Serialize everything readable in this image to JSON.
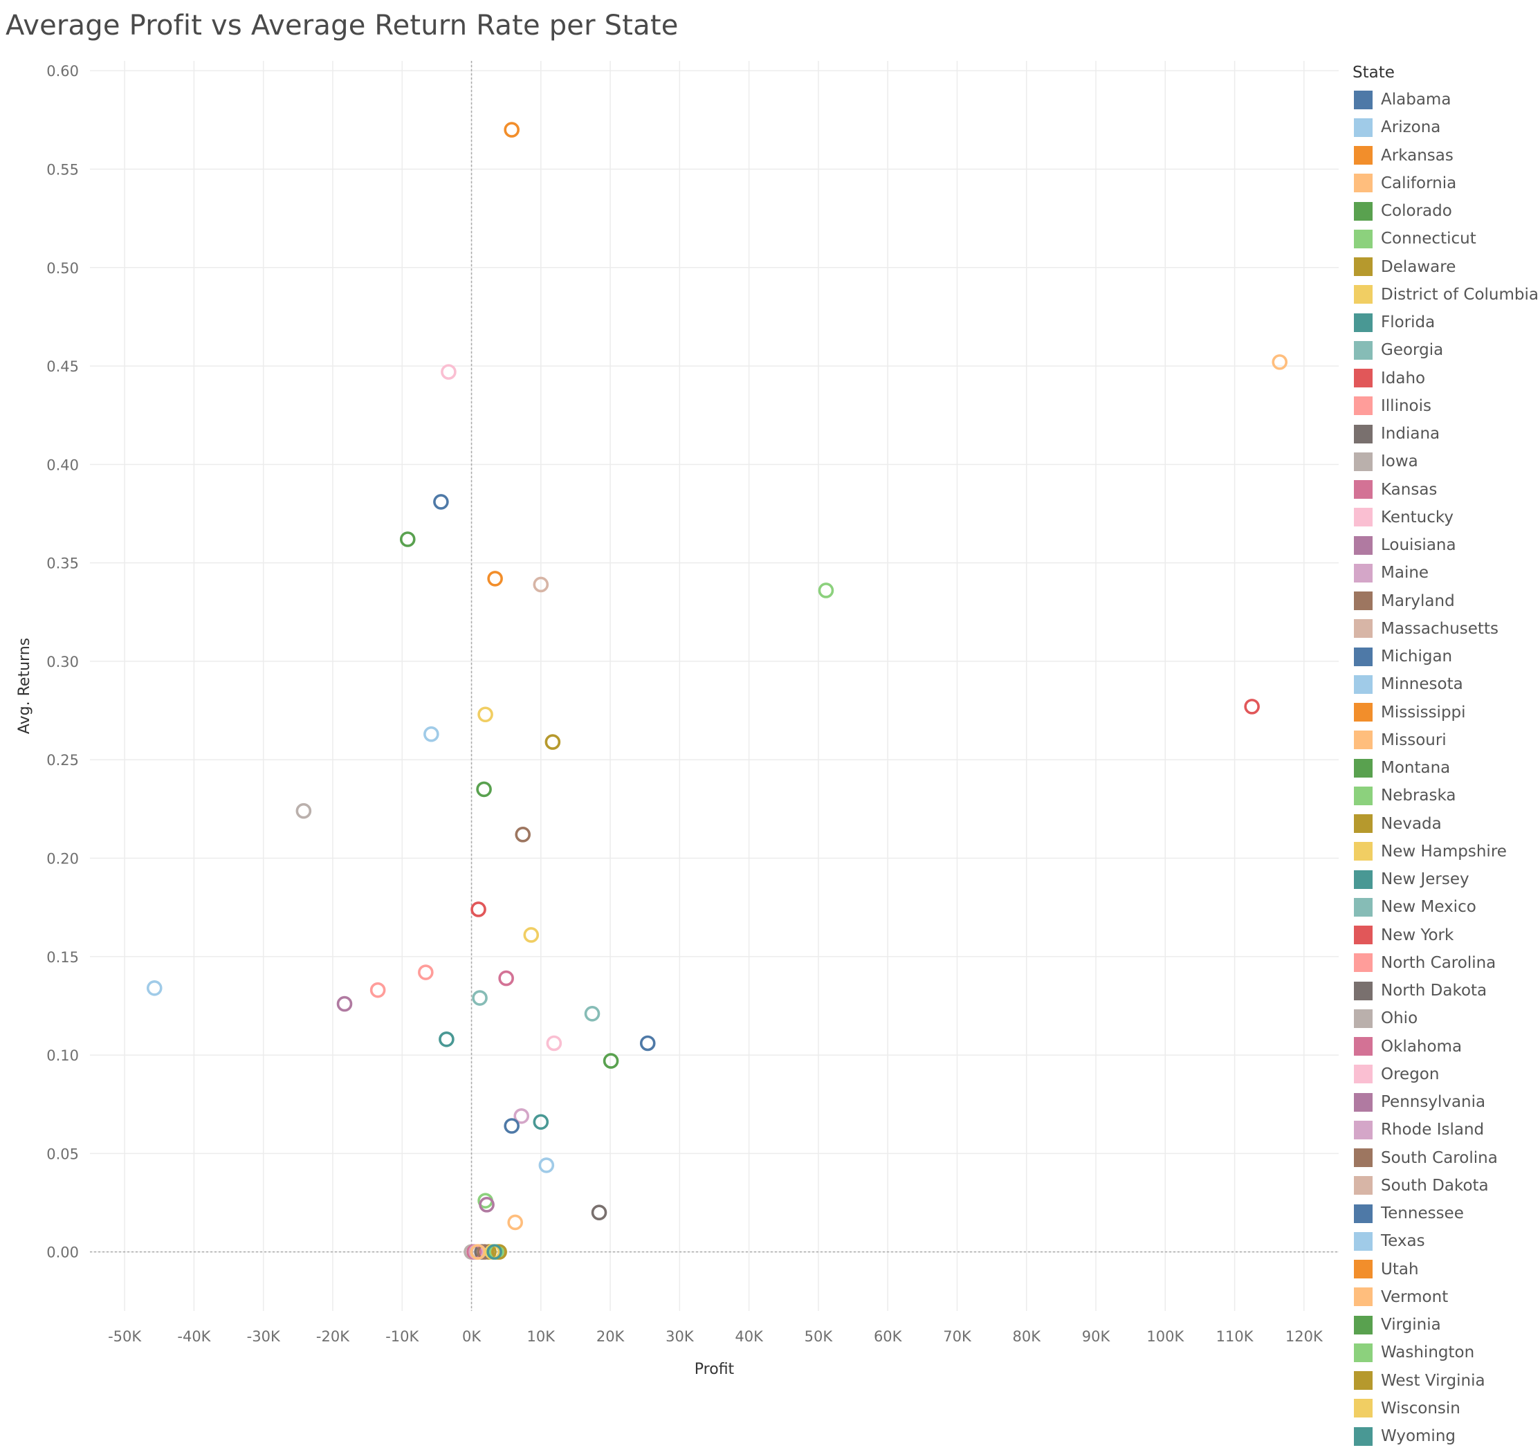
{
  "chart_data": {
    "type": "scatter",
    "title": "Average Profit vs Average Return Rate per State",
    "xlabel": "Profit",
    "ylabel": "Avg. Returns",
    "xlim": [
      -55000,
      125000
    ],
    "ylim": [
      -0.03,
      0.605
    ],
    "x_ticks": [
      -50000,
      -40000,
      -30000,
      -20000,
      -10000,
      0,
      10000,
      20000,
      30000,
      40000,
      50000,
      60000,
      70000,
      80000,
      90000,
      100000,
      110000,
      120000
    ],
    "x_tick_labels": [
      "-50K",
      "-40K",
      "-30K",
      "-20K",
      "-10K",
      "0K",
      "10K",
      "20K",
      "30K",
      "40K",
      "50K",
      "60K",
      "70K",
      "80K",
      "90K",
      "100K",
      "110K",
      "120K"
    ],
    "y_ticks": [
      0,
      0.05,
      0.1,
      0.15,
      0.2,
      0.25,
      0.3,
      0.35,
      0.4,
      0.45,
      0.5,
      0.55,
      0.6
    ],
    "y_tick_labels": [
      "0.00",
      "0.05",
      "0.10",
      "0.15",
      "0.20",
      "0.25",
      "0.30",
      "0.35",
      "0.40",
      "0.45",
      "0.50",
      "0.55",
      "0.60"
    ],
    "grid": true,
    "reference_lines": {
      "x": 0,
      "y": 0
    },
    "legend_title": "State",
    "legend_position": "right",
    "marker": "hollow-circle",
    "points": [
      {
        "state": "Alabama",
        "color": "#4e79a7",
        "x": -4400,
        "y": 0.381
      },
      {
        "state": "Arizona",
        "color": "#a0cbe8",
        "x": -5800,
        "y": 0.263
      },
      {
        "state": "Arkansas",
        "color": "#f28e2b",
        "x": 5800,
        "y": 0.57
      },
      {
        "state": "California",
        "color": "#ffbe7d",
        "x": 116500,
        "y": 0.452
      },
      {
        "state": "Colorado",
        "color": "#59a14f",
        "x": -9200,
        "y": 0.362
      },
      {
        "state": "Connecticut",
        "color": "#8cd17d",
        "x": 2000,
        "y": 0.026
      },
      {
        "state": "Delaware",
        "color": "#b6992d",
        "x": 11700,
        "y": 0.259
      },
      {
        "state": "District of Columbia",
        "color": "#f1ce63",
        "x": 2000,
        "y": 0.273
      },
      {
        "state": "Florida",
        "color": "#499894",
        "x": -3600,
        "y": 0.108
      },
      {
        "state": "Georgia",
        "color": "#86bcb6",
        "x": 17400,
        "y": 0.121
      },
      {
        "state": "Idaho",
        "color": "#e15759",
        "x": 1000,
        "y": 0.174
      },
      {
        "state": "Illinois",
        "color": "#ff9d9a",
        "x": -13500,
        "y": 0.133
      },
      {
        "state": "Indiana",
        "color": "#79706e",
        "x": 18400,
        "y": 0.02
      },
      {
        "state": "Iowa",
        "color": "#bab0ac",
        "x": 0,
        "y": 0.0
      },
      {
        "state": "Kansas",
        "color": "#d37295",
        "x": 5000,
        "y": 0.139
      },
      {
        "state": "Kentucky",
        "color": "#fabfd2",
        "x": -3300,
        "y": 0.447
      },
      {
        "state": "Louisiana",
        "color": "#b07aa1",
        "x": 2200,
        "y": 0.024
      },
      {
        "state": "Maine",
        "color": "#d4a6c8",
        "x": 7200,
        "y": 0.069
      },
      {
        "state": "Maryland",
        "color": "#9d7660",
        "x": 7400,
        "y": 0.212
      },
      {
        "state": "Massachusetts",
        "color": "#d7b5a6",
        "x": 10000,
        "y": 0.339
      },
      {
        "state": "Michigan",
        "color": "#4e79a7",
        "x": 25400,
        "y": 0.106
      },
      {
        "state": "Minnesota",
        "color": "#a0cbe8",
        "x": 10800,
        "y": 0.044
      },
      {
        "state": "Mississippi",
        "color": "#f28e2b",
        "x": 3400,
        "y": 0.342
      },
      {
        "state": "Missouri",
        "color": "#ffbe7d",
        "x": 6300,
        "y": 0.015
      },
      {
        "state": "Montana",
        "color": "#59a14f",
        "x": 1800,
        "y": 0.235
      },
      {
        "state": "Nebraska",
        "color": "#8cd17d",
        "x": 51100,
        "y": 0.336
      },
      {
        "state": "Nevada",
        "color": "#b6992d",
        "x": 2500,
        "y": 0.0
      },
      {
        "state": "New Hampshire",
        "color": "#f1ce63",
        "x": 8600,
        "y": 0.161
      },
      {
        "state": "New Jersey",
        "color": "#499894",
        "x": 10000,
        "y": 0.066
      },
      {
        "state": "New Mexico",
        "color": "#86bcb6",
        "x": 1200,
        "y": 0.129
      },
      {
        "state": "New York",
        "color": "#e15759",
        "x": 112500,
        "y": 0.277
      },
      {
        "state": "North Carolina",
        "color": "#ff9d9a",
        "x": -6600,
        "y": 0.142
      },
      {
        "state": "North Dakota",
        "color": "#79706e",
        "x": 1500,
        "y": 0.0
      },
      {
        "state": "Ohio",
        "color": "#bab0ac",
        "x": -24200,
        "y": 0.224
      },
      {
        "state": "Oklahoma",
        "color": "#d37295",
        "x": 400,
        "y": 0.0
      },
      {
        "state": "Oregon",
        "color": "#fabfd2",
        "x": 11900,
        "y": 0.106
      },
      {
        "state": "Pennsylvania",
        "color": "#b07aa1",
        "x": -18300,
        "y": 0.126
      },
      {
        "state": "Rhode Island",
        "color": "#d4a6c8",
        "x": 700,
        "y": 0.0
      },
      {
        "state": "South Carolina",
        "color": "#9d7660",
        "x": 1900,
        "y": 0.0
      },
      {
        "state": "South Dakota",
        "color": "#d7b5a6",
        "x": 1000,
        "y": 0.0
      },
      {
        "state": "Tennessee",
        "color": "#4e79a7",
        "x": 5800,
        "y": 0.064
      },
      {
        "state": "Texas",
        "color": "#a0cbe8",
        "x": -45700,
        "y": 0.134
      },
      {
        "state": "Utah",
        "color": "#f28e2b",
        "x": 3800,
        "y": 0.0
      },
      {
        "state": "Vermont",
        "color": "#ffbe7d",
        "x": 900,
        "y": 0.0
      },
      {
        "state": "Virginia",
        "color": "#59a14f",
        "x": 20100,
        "y": 0.097
      },
      {
        "state": "Washington",
        "color": "#8cd17d",
        "x": 3600,
        "y": 0.0
      },
      {
        "state": "West Virginia",
        "color": "#b6992d",
        "x": 4000,
        "y": 0.0
      },
      {
        "state": "Wisconsin",
        "color": "#f1ce63",
        "x": 3000,
        "y": 0.0
      },
      {
        "state": "Wyoming",
        "color": "#499894",
        "x": 3300,
        "y": 0.0
      }
    ]
  }
}
